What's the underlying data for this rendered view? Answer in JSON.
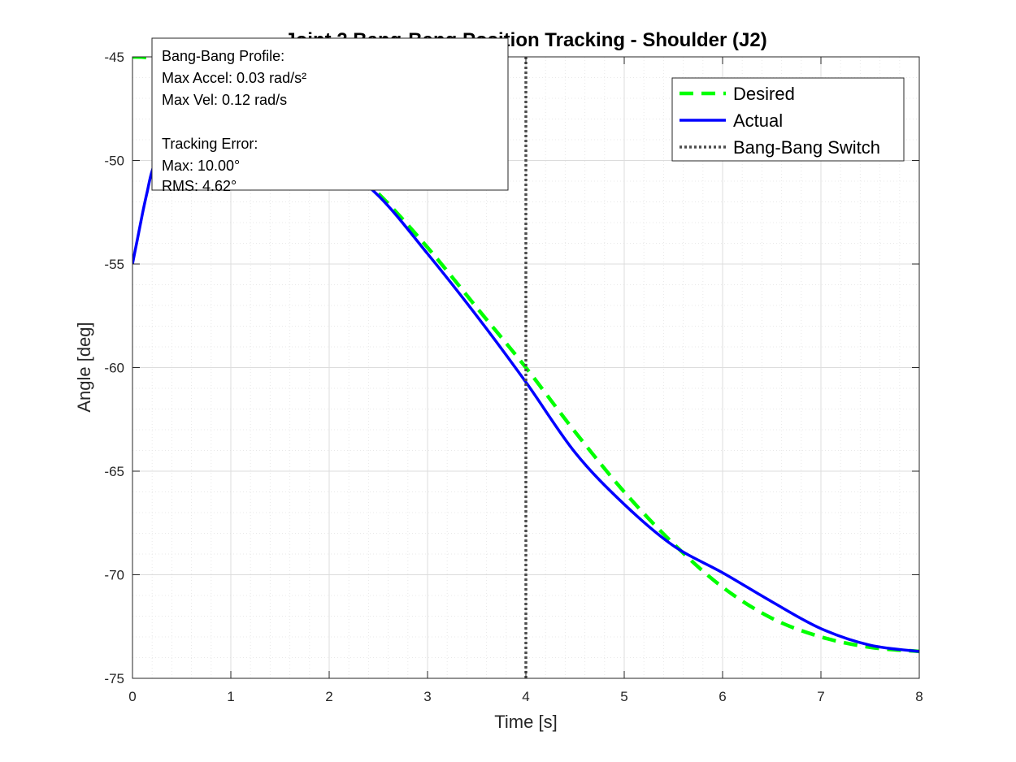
{
  "colors": {
    "desired": "#00ff00",
    "actual": "#0000ff",
    "switch": "#4d4d4d",
    "grid_major": "#dcdcdc",
    "grid_minor": "#e8e8e8",
    "axis": "#262626"
  },
  "chart_data": {
    "type": "line",
    "title": "Joint 2 Bang-Bang Position Tracking - Shoulder (J2)",
    "xlabel": "Time [s]",
    "ylabel": "Angle [deg]",
    "xlim": [
      0,
      8
    ],
    "ylim": [
      -75,
      -45
    ],
    "xticks": [
      0,
      1,
      2,
      3,
      4,
      5,
      6,
      7,
      8
    ],
    "xtick_labels": [
      "0",
      "1",
      "2",
      "3",
      "4",
      "5",
      "6",
      "7",
      "8"
    ],
    "yticks": [
      -75,
      -70,
      -65,
      -60,
      -55,
      -50,
      -45
    ],
    "ytick_labels": [
      "-75",
      "-70",
      "-65",
      "-60",
      "-55",
      "-50",
      "-45"
    ],
    "grid": "on (major + minor)",
    "legend_position": "top-right",
    "legend": [
      {
        "label": "Desired",
        "style": "dashed",
        "color": "#00ff00"
      },
      {
        "label": "Actual",
        "style": "solid",
        "color": "#0000ff"
      },
      {
        "label": "Bang-Bang Switch",
        "style": "dotted",
        "color": "#4d4d4d"
      }
    ],
    "series": [
      {
        "name": "Desired",
        "x": [
          0,
          0.2,
          0.5,
          1.0,
          1.5,
          2.0,
          2.5,
          3.0,
          3.5,
          4.0,
          4.5,
          5.0,
          5.5,
          6.0,
          6.5,
          7.0,
          7.5,
          8.0
        ],
        "y": [
          -45.0,
          -45.1,
          -45.8,
          -46.8,
          -48.0,
          -49.5,
          -51.6,
          -54.2,
          -57.1,
          -60.0,
          -63.1,
          -66.0,
          -68.5,
          -70.6,
          -72.1,
          -73.0,
          -73.5,
          -73.7
        ]
      },
      {
        "name": "Actual",
        "x": [
          0,
          0.05,
          0.1,
          0.15,
          0.2,
          0.3,
          0.5,
          1.0,
          1.5,
          2.0,
          2.5,
          3.0,
          3.5,
          4.0,
          4.5,
          5.0,
          5.5,
          6.0,
          6.5,
          7.0,
          7.5,
          8.0
        ],
        "y": [
          -55.0,
          -53.8,
          -52.6,
          -51.5,
          -50.5,
          -49.3,
          -48.3,
          -47.4,
          -48.4,
          -49.8,
          -51.7,
          -54.5,
          -57.5,
          -60.7,
          -64.1,
          -66.6,
          -68.6,
          -69.9,
          -71.3,
          -72.6,
          -73.4,
          -73.7
        ]
      }
    ],
    "switch_line": {
      "name": "Bang-Bang Switch",
      "x": 4.0
    },
    "annotation_lines": [
      "Bang-Bang Profile:",
      "Max Accel: 0.03 rad/s²",
      "Max Vel: 0.12 rad/s",
      "",
      "Tracking Error:",
      "Max: 10.00°",
      "RMS: 4.62°"
    ]
  }
}
